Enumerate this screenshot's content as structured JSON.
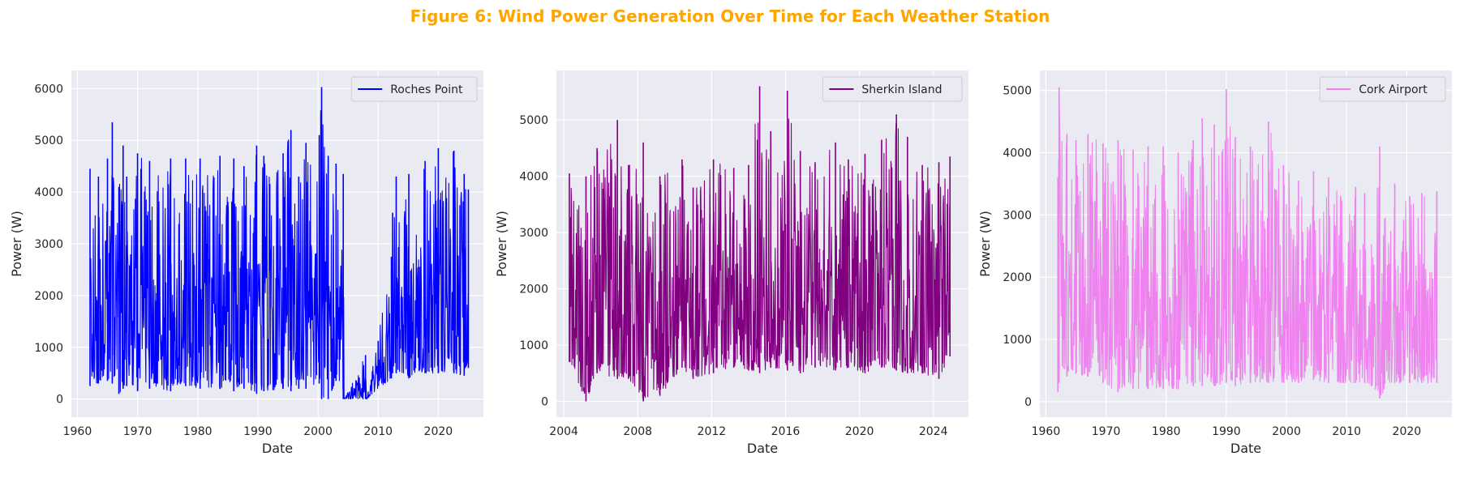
{
  "figure": {
    "title": "Figure 6: Wind Power Generation Over Time for Each Weather Station",
    "title_color": "#FFA500",
    "style": {
      "axes_bg": "#EAEAF2",
      "grid_color": "#FFFFFF",
      "text_color": "#262626"
    }
  },
  "chart_data": [
    {
      "type": "line",
      "title": "",
      "series": [
        {
          "name": "Roches Point",
          "color": "#0000FF"
        }
      ],
      "xlabel": "Date",
      "ylabel": "Power (W)",
      "x_ticks": [
        "1960",
        "1970",
        "1980",
        "1990",
        "2000",
        "2010",
        "2020"
      ],
      "y_ticks": [
        "0",
        "1000",
        "2000",
        "3000",
        "4000",
        "5000",
        "6000"
      ],
      "xlim": [
        1959.0,
        2027.5
      ],
      "ylim": [
        -350,
        6350
      ],
      "grid": true,
      "legend": "top-right",
      "x": [
        1962.1,
        1963.5,
        1965.0,
        1965.8,
        1966.9,
        1967.6,
        1968.2,
        1970.0,
        1972.0,
        1975.5,
        1978.0,
        1980.4,
        1983.7,
        1986.0,
        1987.7,
        1989.8,
        1991.0,
        1994.2,
        1995.5,
        1996.8,
        1998.0,
        2000.2,
        2000.6,
        2001.7,
        2003.0,
        2004.2,
        2004.4,
        2007.9,
        2008.1,
        2012.2,
        2012.4,
        2013.0,
        2015.1,
        2017.8,
        2020.0,
        2022.6,
        2024.3,
        2025.0
      ],
      "y_max": [
        4450,
        4300,
        4650,
        5350,
        4100,
        4900,
        4300,
        4750,
        4600,
        4650,
        4650,
        4650,
        4700,
        4650,
        4500,
        4900,
        4700,
        4750,
        5200,
        4300,
        4950,
        5100,
        6030,
        4700,
        4550,
        4350,
        0,
        850,
        0,
        2750,
        3600,
        4300,
        4350,
        4600,
        4850,
        4800,
        4350,
        4050
      ],
      "y_min": [
        250,
        300,
        350,
        300,
        100,
        200,
        250,
        150,
        200,
        150,
        250,
        200,
        200,
        150,
        200,
        100,
        150,
        200,
        150,
        200,
        200,
        300,
        0,
        0,
        350,
        0,
        0,
        0,
        0,
        400,
        500,
        500,
        400,
        500,
        500,
        500,
        450,
        600
      ]
    },
    {
      "type": "line",
      "title": "",
      "series": [
        {
          "name": "Sherkin Island",
          "color": "#800080"
        }
      ],
      "xlabel": "Date",
      "ylabel": "Power (W)",
      "x_ticks": [
        "2004",
        "2008",
        "2012",
        "2016",
        "2020",
        "2024"
      ],
      "y_ticks": [
        "0",
        "1000",
        "2000",
        "3000",
        "4000",
        "5000"
      ],
      "xlim": [
        2003.6,
        2025.9
      ],
      "ylim": [
        -280,
        5880
      ],
      "grid": true,
      "legend": "top-right",
      "x": [
        2004.3,
        2005.2,
        2005.8,
        2006.9,
        2007.5,
        2008.3,
        2009.2,
        2010.4,
        2011.0,
        2012.1,
        2013.2,
        2014.0,
        2014.6,
        2015.2,
        2016.1,
        2016.8,
        2017.6,
        2018.7,
        2019.4,
        2020.3,
        2021.2,
        2022.0,
        2022.6,
        2023.4,
        2024.3,
        2024.9
      ],
      "y_max": [
        4050,
        4000,
        4500,
        5000,
        4200,
        4600,
        4000,
        4300,
        3800,
        4300,
        4150,
        4200,
        5600,
        4800,
        5520,
        4450,
        4250,
        4600,
        4300,
        4400,
        4650,
        5100,
        4700,
        4200,
        4250,
        4350
      ],
      "y_min": [
        700,
        0,
        500,
        400,
        400,
        0,
        100,
        600,
        400,
        500,
        600,
        550,
        500,
        600,
        550,
        500,
        600,
        550,
        600,
        500,
        600,
        550,
        500,
        500,
        400,
        800
      ]
    },
    {
      "type": "line",
      "title": "",
      "series": [
        {
          "name": "Cork Airport",
          "color": "#EE82EE"
        }
      ],
      "xlabel": "Date",
      "ylabel": "Power (W)",
      "x_ticks": [
        "1960",
        "1970",
        "1980",
        "1990",
        "2000",
        "2010",
        "2020"
      ],
      "y_ticks": [
        "0",
        "1000",
        "2000",
        "3000",
        "4000",
        "5000"
      ],
      "xlim": [
        1959.0,
        2027.5
      ],
      "ylim": [
        -250,
        5320
      ],
      "grid": true,
      "legend": "top-right",
      "x": [
        1962.0,
        1962.2,
        1963.5,
        1965.0,
        1967.0,
        1969.5,
        1972.0,
        1974.5,
        1977.0,
        1979.5,
        1982.0,
        1984.5,
        1986.0,
        1988.0,
        1990.0,
        1991.5,
        1994.0,
        1997.0,
        1999.5,
        2002.0,
        2004.5,
        2007.0,
        2009.0,
        2011.5,
        2013.0,
        2015.5,
        2018.0,
        2020.5,
        2022.5,
        2025.0
      ],
      "y_max": [
        3600,
        5050,
        4300,
        4200,
        4300,
        4150,
        4200,
        4050,
        4100,
        4100,
        4000,
        4200,
        4550,
        4450,
        5020,
        4250,
        4100,
        4500,
        3800,
        3550,
        3700,
        3600,
        3300,
        3450,
        3350,
        4100,
        3500,
        3300,
        3350,
        3380
      ],
      "y_min": [
        150,
        300,
        400,
        450,
        400,
        300,
        150,
        200,
        200,
        200,
        200,
        250,
        250,
        250,
        300,
        250,
        300,
        300,
        300,
        300,
        350,
        300,
        300,
        300,
        300,
        50,
        300,
        300,
        300,
        300
      ]
    }
  ]
}
